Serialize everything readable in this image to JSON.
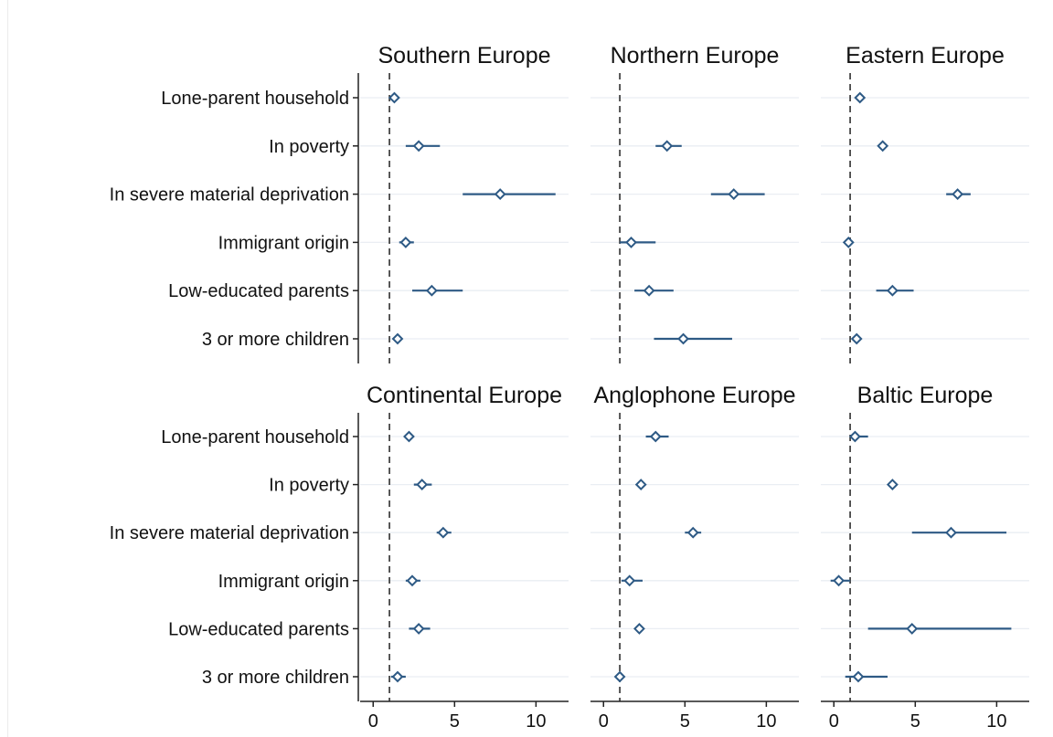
{
  "chart_data": {
    "type": "scatter",
    "subtype": "dot-and-whisker (point estimates with confidence intervals), 2x3 small multiples",
    "reference_line_x": 1,
    "xlim": [
      -0.8,
      12
    ],
    "x_ticks": [
      0,
      5,
      10
    ],
    "x_tick_labels": [
      "0",
      "5",
      "10"
    ],
    "categories": [
      "Lone-parent household",
      "In poverty",
      "In severe material deprivation",
      "Immigrant origin",
      "Low-educated parents",
      "3 or more children"
    ],
    "colors": {
      "point_fill": "#ffffff",
      "point_stroke": "#2e5a85",
      "ci_line": "#2e5a85",
      "gridline": "#eaeef3",
      "axis": "#222222",
      "reference_line": "#222222"
    },
    "grid": true,
    "panels": [
      {
        "title": "Southern Europe",
        "estimates": [
          1.3,
          2.8,
          7.8,
          2.0,
          3.6,
          1.5
        ],
        "ci_low": [
          1.1,
          2.0,
          5.5,
          1.6,
          2.4,
          1.3
        ],
        "ci_high": [
          1.5,
          4.1,
          11.2,
          2.5,
          5.5,
          1.7
        ]
      },
      {
        "title": "Northern Europe",
        "estimates": [
          null,
          3.9,
          8.0,
          1.7,
          2.8,
          4.9
        ],
        "ci_low": [
          null,
          3.2,
          6.6,
          1.0,
          1.9,
          3.1
        ],
        "ci_high": [
          null,
          4.8,
          9.9,
          3.2,
          4.3,
          7.9
        ]
      },
      {
        "title": "Eastern Europe",
        "estimates": [
          1.6,
          3.0,
          7.6,
          0.9,
          3.6,
          1.4
        ],
        "ci_low": [
          1.4,
          2.8,
          6.9,
          0.7,
          2.6,
          1.2
        ],
        "ci_high": [
          1.8,
          3.2,
          8.4,
          1.1,
          4.9,
          1.6
        ]
      },
      {
        "title": "Continental Europe",
        "estimates": [
          2.2,
          3.0,
          4.3,
          2.4,
          2.8,
          1.5
        ],
        "ci_low": [
          1.9,
          2.5,
          3.9,
          2.0,
          2.2,
          1.1
        ],
        "ci_high": [
          2.5,
          3.6,
          4.8,
          2.9,
          3.5,
          2.0
        ]
      },
      {
        "title": "Anglophone Europe",
        "estimates": [
          3.2,
          2.3,
          5.5,
          1.6,
          2.2,
          1.0
        ],
        "ci_low": [
          2.6,
          2.0,
          5.0,
          1.1,
          2.0,
          0.9
        ],
        "ci_high": [
          4.0,
          2.6,
          6.0,
          2.4,
          2.4,
          1.1
        ]
      },
      {
        "title": "Baltic Europe",
        "estimates": [
          1.3,
          3.6,
          7.2,
          0.3,
          4.8,
          1.5
        ],
        "ci_low": [
          1.0,
          3.4,
          4.8,
          -0.2,
          2.1,
          0.7
        ],
        "ci_high": [
          2.1,
          3.8,
          10.6,
          1.0,
          10.9,
          3.3
        ]
      }
    ]
  }
}
